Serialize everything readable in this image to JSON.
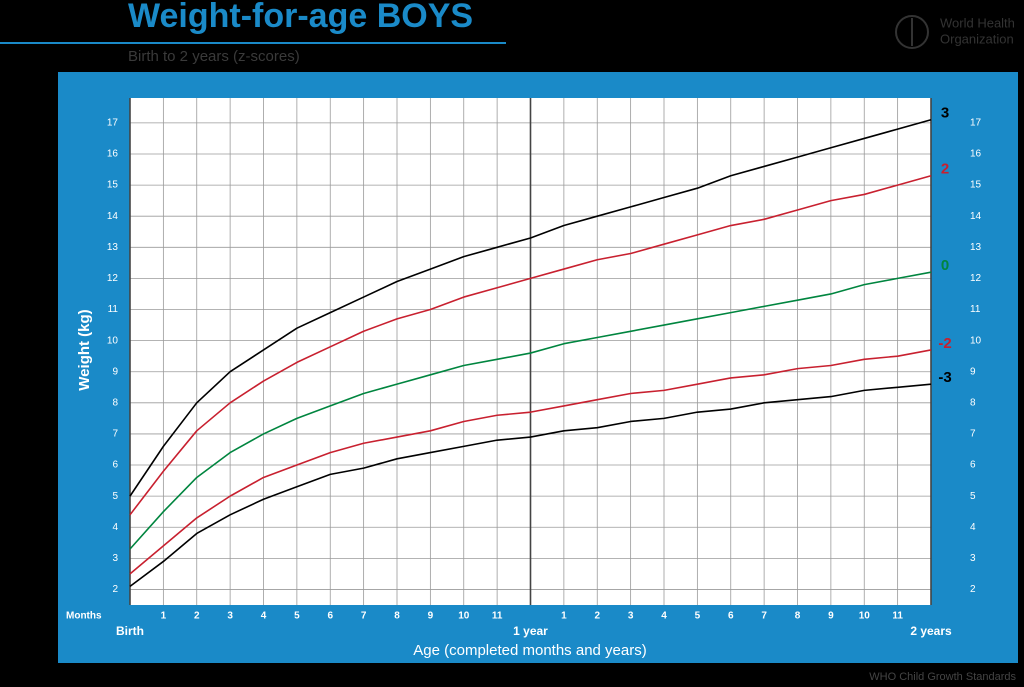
{
  "chart_data": {
    "type": "line",
    "title": "Weight-for-age BOYS",
    "subtitle": "Birth to 2 years (z-scores)",
    "x_label": "Age (completed months and years)",
    "y_label": "Weight (kg)",
    "x_unit_label": "Months",
    "x": [
      0,
      1,
      2,
      3,
      4,
      5,
      6,
      7,
      8,
      9,
      10,
      11,
      12,
      13,
      14,
      15,
      16,
      17,
      18,
      19,
      20,
      21,
      22,
      23,
      24
    ],
    "xlim": [
      0,
      24
    ],
    "xticks": [
      {
        "value": 0,
        "label": "Birth"
      },
      1,
      2,
      3,
      4,
      5,
      6,
      7,
      8,
      9,
      10,
      11,
      {
        "value": 12,
        "label": "1 year"
      },
      {
        "value": 13,
        "label": "1"
      },
      {
        "value": 14,
        "label": "2"
      },
      {
        "value": 15,
        "label": "3"
      },
      {
        "value": 16,
        "label": "4"
      },
      {
        "value": 17,
        "label": "5"
      },
      {
        "value": 18,
        "label": "6"
      },
      {
        "value": 19,
        "label": "7"
      },
      {
        "value": 20,
        "label": "8"
      },
      {
        "value": 21,
        "label": "9"
      },
      {
        "value": 22,
        "label": "10"
      },
      {
        "value": 23,
        "label": "11"
      },
      {
        "value": 24,
        "label": "2 years"
      }
    ],
    "ylim": [
      1.5,
      17.8
    ],
    "yticks": [
      2,
      3,
      4,
      5,
      6,
      7,
      8,
      9,
      10,
      11,
      12,
      13,
      14,
      15,
      16,
      17
    ],
    "grid": true,
    "series": [
      {
        "name": "3",
        "color": "#000000",
        "values": [
          5.0,
          6.6,
          8.0,
          9.0,
          9.7,
          10.4,
          10.9,
          11.4,
          11.9,
          12.3,
          12.7,
          13.0,
          13.3,
          13.7,
          14.0,
          14.3,
          14.6,
          14.9,
          15.3,
          15.6,
          15.9,
          16.2,
          16.5,
          16.8,
          17.1
        ]
      },
      {
        "name": "2",
        "color": "#c8202f",
        "values": [
          4.4,
          5.8,
          7.1,
          8.0,
          8.7,
          9.3,
          9.8,
          10.3,
          10.7,
          11.0,
          11.4,
          11.7,
          12.0,
          12.3,
          12.6,
          12.8,
          13.1,
          13.4,
          13.7,
          13.9,
          14.2,
          14.5,
          14.7,
          15.0,
          15.3
        ]
      },
      {
        "name": "0",
        "color": "#00853f",
        "values": [
          3.3,
          4.5,
          5.6,
          6.4,
          7.0,
          7.5,
          7.9,
          8.3,
          8.6,
          8.9,
          9.2,
          9.4,
          9.6,
          9.9,
          10.1,
          10.3,
          10.5,
          10.7,
          10.9,
          11.1,
          11.3,
          11.5,
          11.8,
          12.0,
          12.2
        ]
      },
      {
        "name": "-2",
        "color": "#c8202f",
        "values": [
          2.5,
          3.4,
          4.3,
          5.0,
          5.6,
          6.0,
          6.4,
          6.7,
          6.9,
          7.1,
          7.4,
          7.6,
          7.7,
          7.9,
          8.1,
          8.3,
          8.4,
          8.6,
          8.8,
          8.9,
          9.1,
          9.2,
          9.4,
          9.5,
          9.7
        ]
      },
      {
        "name": "-3",
        "color": "#000000",
        "values": [
          2.1,
          2.9,
          3.8,
          4.4,
          4.9,
          5.3,
          5.7,
          5.9,
          6.2,
          6.4,
          6.6,
          6.8,
          6.9,
          7.1,
          7.2,
          7.4,
          7.5,
          7.7,
          7.8,
          8.0,
          8.1,
          8.2,
          8.4,
          8.5,
          8.6
        ]
      }
    ]
  },
  "logo": {
    "lines": [
      "World Health",
      "Organization"
    ]
  },
  "footer": "WHO Child Growth Standards"
}
